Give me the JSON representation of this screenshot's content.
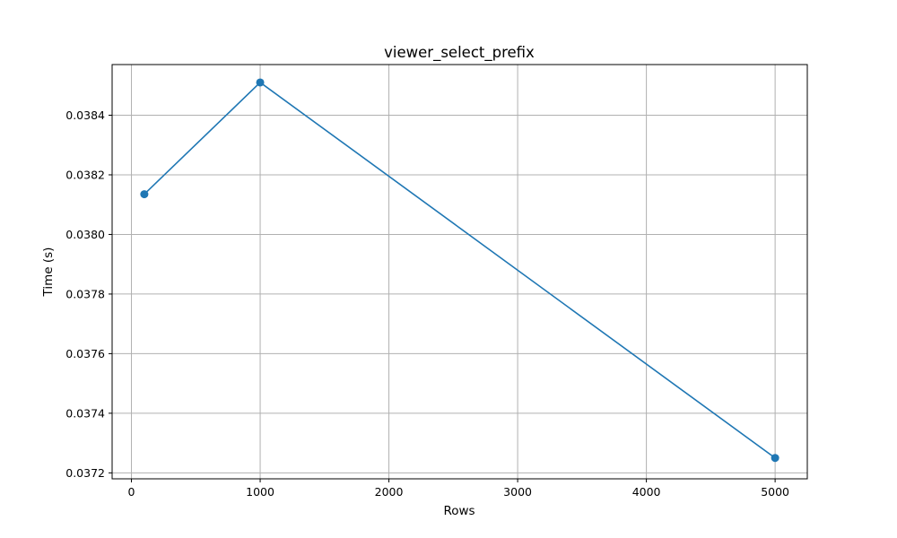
{
  "chart_data": {
    "type": "line",
    "title": "viewer_select_prefix",
    "xlabel": "Rows",
    "ylabel": "Time (s)",
    "xlim": [
      -150,
      5250
    ],
    "ylim": [
      0.03718,
      0.03857
    ],
    "xticks": [
      0,
      1000,
      2000,
      3000,
      4000,
      5000
    ],
    "xtick_labels": [
      "0",
      "1000",
      "2000",
      "3000",
      "4000",
      "5000"
    ],
    "yticks": [
      0.0372,
      0.0374,
      0.0376,
      0.0378,
      0.038,
      0.0382,
      0.0384
    ],
    "ytick_labels": [
      "0.0372",
      "0.0374",
      "0.0376",
      "0.0378",
      "0.0380",
      "0.0382",
      "0.0384"
    ],
    "grid": true,
    "series": [
      {
        "color": "#1f77b4",
        "marker": "circle",
        "x": [
          100,
          1000,
          5000
        ],
        "y": [
          0.038135,
          0.03851,
          0.03725
        ]
      }
    ]
  }
}
